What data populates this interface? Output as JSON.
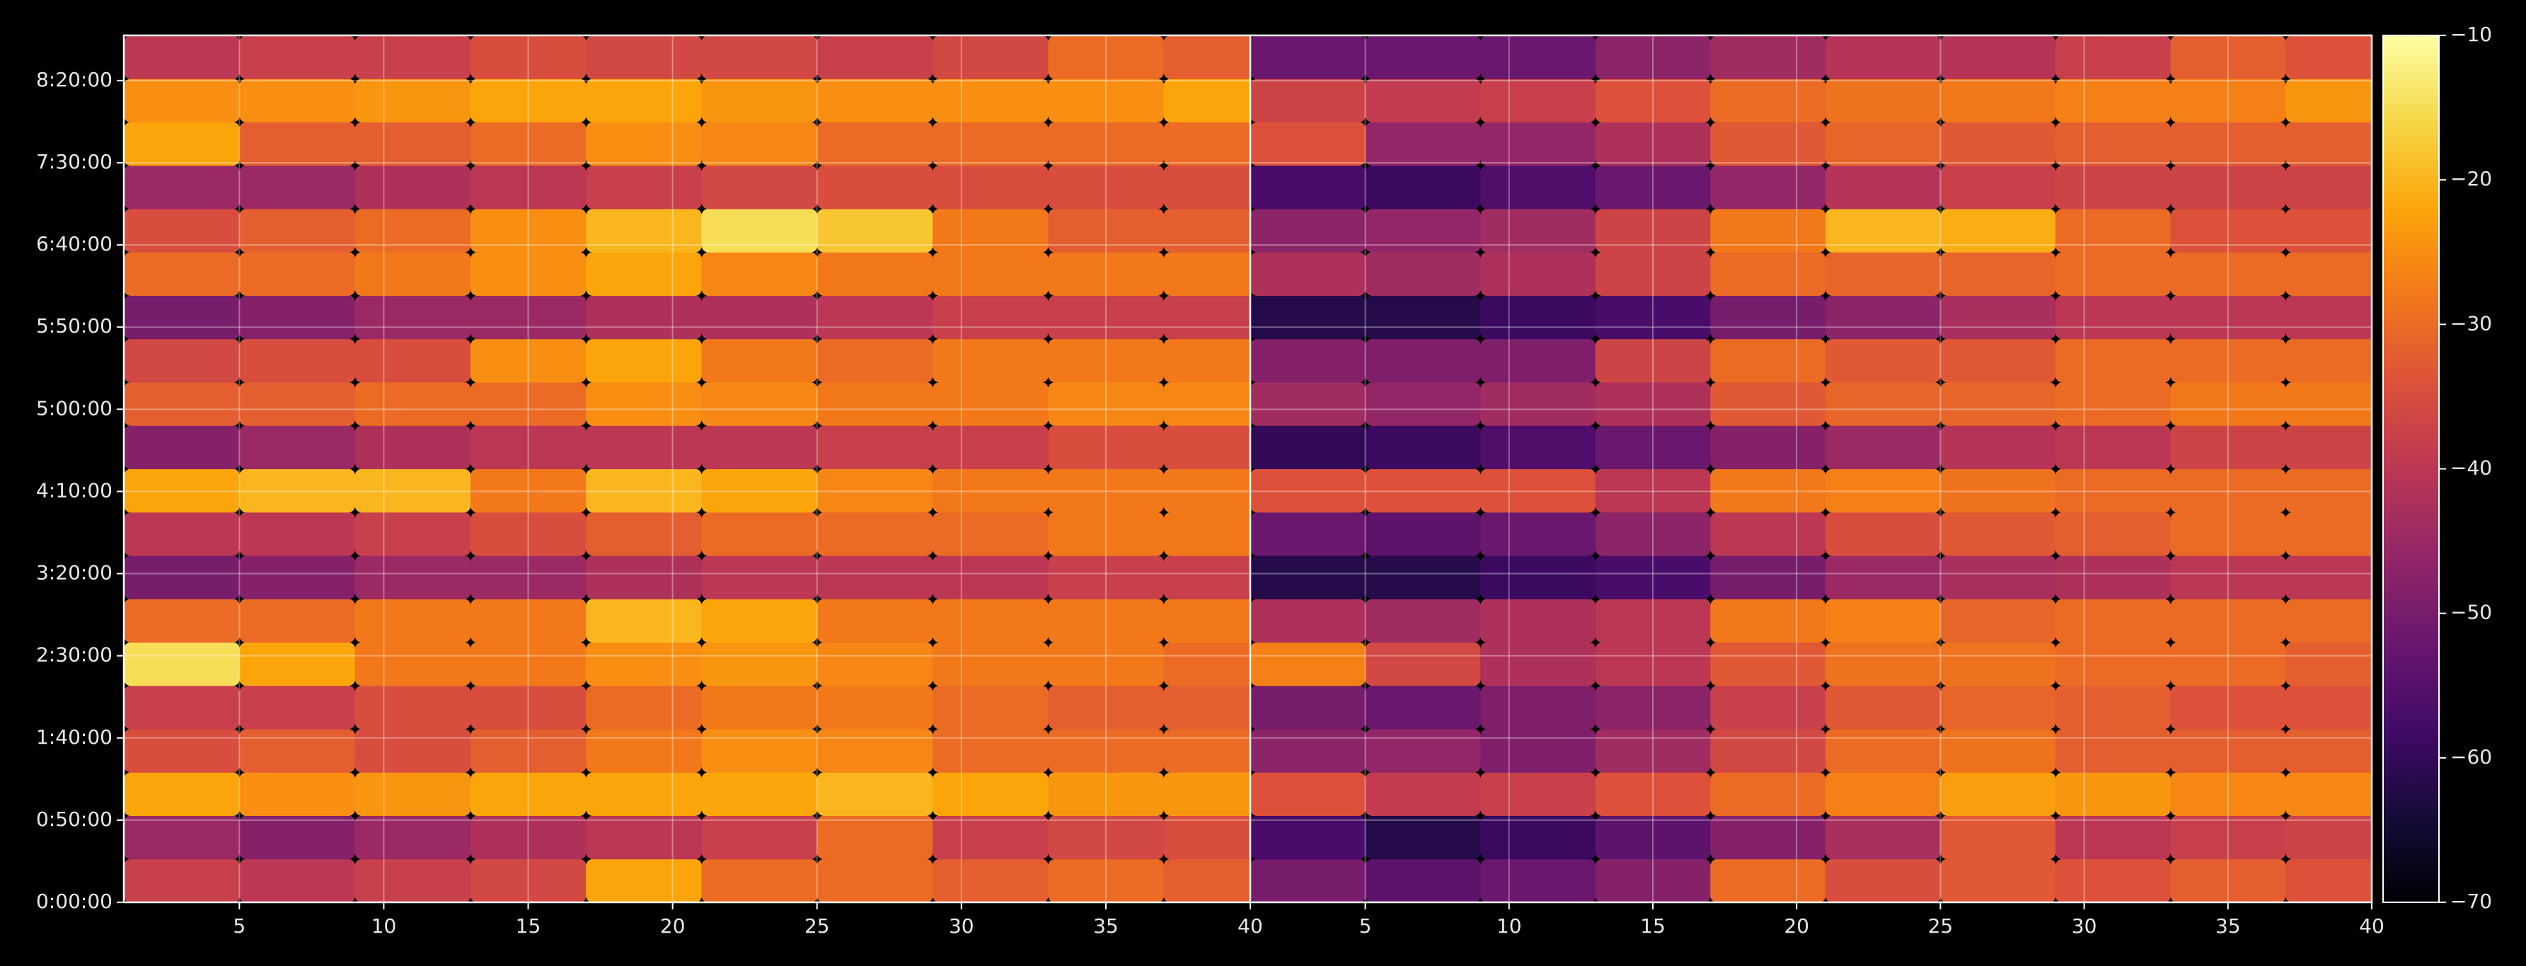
{
  "chart_data": {
    "type": "heatmap",
    "colormap": "inferno",
    "grid": true,
    "y": [
      791,
      2374,
      3956,
      5539,
      7121,
      8704,
      10286,
      11869,
      13451,
      15034,
      16616,
      18199,
      19781,
      21364,
      22946,
      24529,
      26111,
      27694,
      29276,
      30859
    ],
    "ylim": [
      0,
      31650
    ],
    "yticks": [
      {
        "value": 0,
        "label": "0:00:00"
      },
      {
        "value": 3000,
        "label": "0:50:00"
      },
      {
        "value": 6000,
        "label": "1:40:00"
      },
      {
        "value": 9000,
        "label": "2:30:00"
      },
      {
        "value": 12000,
        "label": "3:20:00"
      },
      {
        "value": 15000,
        "label": "4:10:00"
      },
      {
        "value": 18000,
        "label": "5:00:00"
      },
      {
        "value": 21000,
        "label": "5:50:00"
      },
      {
        "value": 24000,
        "label": "6:40:00"
      },
      {
        "value": 27000,
        "label": "7:30:00"
      },
      {
        "value": 30000,
        "label": "8:20:00"
      }
    ],
    "panels": [
      {
        "x": [
          3,
          7,
          11,
          15,
          19,
          23,
          27,
          31,
          35,
          39
        ],
        "xlim": [
          1,
          40
        ],
        "xticks": [
          5,
          10,
          15,
          20,
          25,
          30,
          35,
          40
        ],
        "values": [
          [
            -38,
            -40,
            -38,
            -36,
            -22,
            -30,
            -30,
            -32,
            -30,
            -32
          ],
          [
            -45,
            -48,
            -45,
            -42,
            -40,
            -38,
            -30,
            -38,
            -36,
            -35
          ],
          [
            -22,
            -25,
            -24,
            -22,
            -22,
            -22,
            -20,
            -22,
            -24,
            -24
          ],
          [
            -35,
            -32,
            -35,
            -32,
            -28,
            -25,
            -26,
            -30,
            -30,
            -30
          ],
          [
            -38,
            -38,
            -35,
            -35,
            -30,
            -28,
            -28,
            -30,
            -32,
            -32
          ],
          [
            -15,
            -22,
            -28,
            -28,
            -25,
            -24,
            -26,
            -28,
            -28,
            -30
          ],
          [
            -30,
            -30,
            -28,
            -28,
            -20,
            -22,
            -28,
            -28,
            -28,
            -28
          ],
          [
            -50,
            -48,
            -45,
            -45,
            -42,
            -40,
            -40,
            -40,
            -38,
            -38
          ],
          [
            -40,
            -40,
            -38,
            -35,
            -32,
            -30,
            -30,
            -30,
            -28,
            -28
          ],
          [
            -22,
            -20,
            -20,
            -28,
            -20,
            -22,
            -26,
            -28,
            -28,
            -28
          ],
          [
            -48,
            -45,
            -42,
            -40,
            -40,
            -40,
            -38,
            -38,
            -35,
            -35
          ],
          [
            -32,
            -32,
            -30,
            -30,
            -25,
            -26,
            -28,
            -28,
            -26,
            -26
          ],
          [
            -36,
            -35,
            -35,
            -25,
            -22,
            -28,
            -30,
            -28,
            -28,
            -28
          ],
          [
            -50,
            -48,
            -45,
            -45,
            -42,
            -42,
            -40,
            -38,
            -38,
            -38
          ],
          [
            -30,
            -30,
            -28,
            -25,
            -22,
            -26,
            -28,
            -28,
            -28,
            -28
          ],
          [
            -35,
            -32,
            -30,
            -25,
            -20,
            -15,
            -18,
            -28,
            -32,
            -32
          ],
          [
            -45,
            -45,
            -42,
            -40,
            -38,
            -36,
            -35,
            -35,
            -35,
            -35
          ],
          [
            -22,
            -32,
            -32,
            -30,
            -25,
            -26,
            -30,
            -30,
            -30,
            -30
          ],
          [
            -25,
            -25,
            -24,
            -22,
            -22,
            -24,
            -25,
            -25,
            -25,
            -22
          ],
          [
            -40,
            -38,
            -38,
            -35,
            -36,
            -36,
            -38,
            -36,
            -30,
            -32
          ]
        ]
      },
      {
        "x": [
          3,
          7,
          11,
          15,
          19,
          23,
          27,
          31,
          35,
          39
        ],
        "xlim": [
          1,
          40
        ],
        "xticks": [
          5,
          10,
          15,
          20,
          25,
          30,
          35,
          40
        ],
        "values": [
          [
            -50,
            -54,
            -52,
            -48,
            -30,
            -35,
            -33,
            -34,
            -32,
            -34
          ],
          [
            -57,
            -62,
            -59,
            -54,
            -48,
            -43,
            -33,
            -40,
            -38,
            -37
          ],
          [
            -34,
            -39,
            -38,
            -34,
            -30,
            -27,
            -23,
            -24,
            -26,
            -26
          ],
          [
            -47,
            -46,
            -49,
            -44,
            -36,
            -30,
            -29,
            -32,
            -32,
            -32
          ],
          [
            -50,
            -52,
            -49,
            -47,
            -38,
            -33,
            -31,
            -32,
            -34,
            -34
          ],
          [
            -27,
            -36,
            -42,
            -40,
            -33,
            -29,
            -29,
            -30,
            -30,
            -32
          ],
          [
            -42,
            -44,
            -42,
            -40,
            -28,
            -27,
            -31,
            -30,
            -30,
            -30
          ],
          [
            -62,
            -62,
            -59,
            -57,
            -50,
            -45,
            -43,
            -42,
            -40,
            -40
          ],
          [
            -52,
            -54,
            -52,
            -47,
            -40,
            -35,
            -33,
            -32,
            -30,
            -30
          ],
          [
            -34,
            -34,
            -34,
            -40,
            -28,
            -27,
            -29,
            -30,
            -30,
            -30
          ],
          [
            -60,
            -59,
            -56,
            -52,
            -48,
            -45,
            -41,
            -40,
            -37,
            -37
          ],
          [
            -44,
            -46,
            -44,
            -42,
            -33,
            -31,
            -31,
            -30,
            -28,
            -28
          ],
          [
            -48,
            -49,
            -49,
            -37,
            -30,
            -33,
            -33,
            -30,
            -30,
            -30
          ],
          [
            -62,
            -62,
            -59,
            -57,
            -50,
            -47,
            -43,
            -40,
            -40,
            -40
          ],
          [
            -42,
            -44,
            -42,
            -37,
            -30,
            -31,
            -31,
            -30,
            -30,
            -30
          ],
          [
            -47,
            -46,
            -44,
            -37,
            -28,
            -20,
            -21,
            -30,
            -34,
            -34
          ],
          [
            -57,
            -59,
            -56,
            -52,
            -46,
            -41,
            -38,
            -37,
            -37,
            -37
          ],
          [
            -34,
            -46,
            -46,
            -42,
            -33,
            -31,
            -33,
            -32,
            -32,
            -32
          ],
          [
            -37,
            -39,
            -38,
            -34,
            -30,
            -29,
            -28,
            -27,
            -27,
            -24
          ],
          [
            -52,
            -52,
            -52,
            -47,
            -44,
            -41,
            -41,
            -38,
            -32,
            -34
          ]
        ]
      }
    ],
    "clim": [
      -70,
      -10
    ],
    "cticks": [
      {
        "value": -70,
        "label": "−70"
      },
      {
        "value": -60,
        "label": "−60"
      },
      {
        "value": -50,
        "label": "−50"
      },
      {
        "value": -40,
        "label": "−40"
      },
      {
        "value": -30,
        "label": "−30"
      },
      {
        "value": -20,
        "label": "−20"
      },
      {
        "value": -10,
        "label": "−10"
      }
    ]
  }
}
